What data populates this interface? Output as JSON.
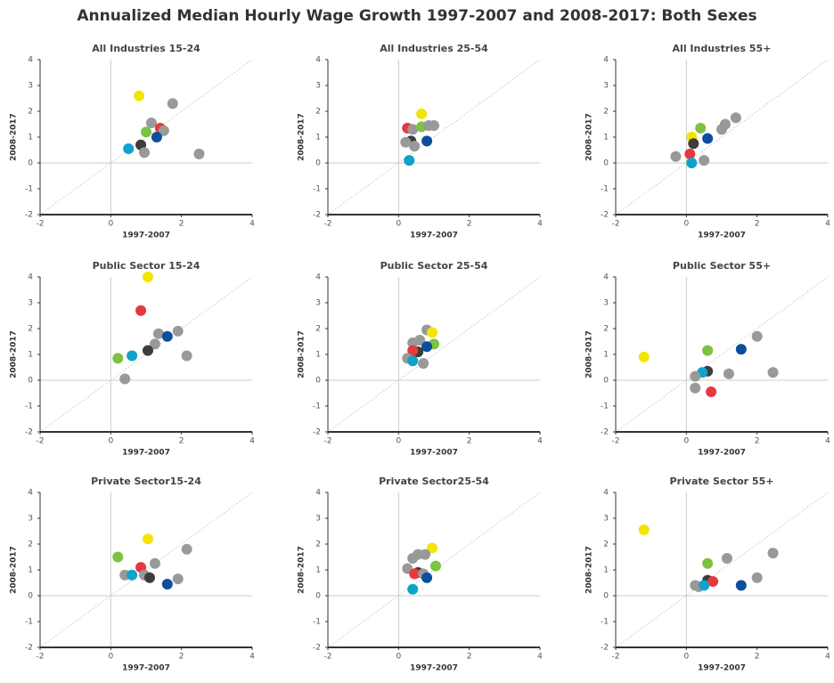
{
  "title": "Annualized Median Hourly Wage Growth 1997-2007 and 2008-2017: Both Sexes",
  "chart_data": [
    {
      "type": "scatter",
      "title": "All Industries 15-24",
      "x_label": "1997-2007",
      "y_label": "2008-2017",
      "x": [
        0.8,
        1.75,
        1.15,
        1.4,
        1.5,
        1.0,
        1.3,
        0.85,
        0.5,
        0.95,
        2.5
      ],
      "y": [
        2.6,
        2.3,
        1.55,
        1.35,
        1.25,
        1.2,
        1.0,
        0.7,
        0.55,
        0.4,
        0.35
      ],
      "colors": [
        "#f2e500",
        "#999999",
        "#999999",
        "#e8383d",
        "#999999",
        "#7dc242",
        "#0b4f9c",
        "#3d3d3d",
        "#0fa3c9",
        "#999999",
        "#999999"
      ],
      "xlim": [
        -2,
        4
      ],
      "ylim": [
        -2,
        4
      ],
      "xticks": [
        -2,
        0,
        2,
        4
      ],
      "yticks": [
        -2,
        -1,
        0,
        1,
        2,
        3,
        4
      ]
    },
    {
      "type": "scatter",
      "title": "All Industries 25-54",
      "x_label": "1997-2007",
      "y_label": "2008-2017",
      "x": [
        0.65,
        0.25,
        0.4,
        0.65,
        0.85,
        1.0,
        0.35,
        0.2,
        0.45,
        0.8,
        0.3
      ],
      "y": [
        1.9,
        1.35,
        1.3,
        1.4,
        1.45,
        1.45,
        0.85,
        0.8,
        0.65,
        0.85,
        0.1
      ],
      "colors": [
        "#f2e500",
        "#e8383d",
        "#999999",
        "#7dc242",
        "#999999",
        "#999999",
        "#3d3d3d",
        "#999999",
        "#999999",
        "#0b4f9c",
        "#0fa3c9"
      ],
      "xlim": [
        -2,
        4
      ],
      "ylim": [
        -2,
        4
      ],
      "xticks": [
        -2,
        0,
        2,
        4
      ],
      "yticks": [
        -2,
        -1,
        0,
        1,
        2,
        3,
        4
      ]
    },
    {
      "type": "scatter",
      "title": "All Industries 55+",
      "x_label": "1997-2007",
      "y_label": "2008-2017",
      "x": [
        1.4,
        1.1,
        1.0,
        0.4,
        0.6,
        0.15,
        0.2,
        0.1,
        -0.3,
        0.5,
        0.15
      ],
      "y": [
        1.75,
        1.5,
        1.3,
        1.35,
        0.95,
        1.0,
        0.75,
        0.35,
        0.25,
        0.1,
        0.0
      ],
      "colors": [
        "#999999",
        "#999999",
        "#999999",
        "#7dc242",
        "#0b4f9c",
        "#f2e500",
        "#3d3d3d",
        "#e8383d",
        "#999999",
        "#999999",
        "#0fa3c9"
      ],
      "xlim": [
        -2,
        4
      ],
      "ylim": [
        -2,
        4
      ],
      "xticks": [
        -2,
        0,
        2,
        4
      ],
      "yticks": [
        -2,
        -1,
        0,
        1,
        2,
        3,
        4
      ]
    },
    {
      "type": "scatter",
      "title": "Public Sector 15-24",
      "x_label": "1997-2007",
      "y_label": "2008-2017",
      "x": [
        1.05,
        0.85,
        1.35,
        1.9,
        1.6,
        1.25,
        1.05,
        2.15,
        0.6,
        0.2,
        0.4
      ],
      "y": [
        4.0,
        2.7,
        1.8,
        1.9,
        1.7,
        1.4,
        1.15,
        0.95,
        0.95,
        0.85,
        0.05
      ],
      "colors": [
        "#f2e500",
        "#e8383d",
        "#999999",
        "#999999",
        "#0b4f9c",
        "#999999",
        "#3d3d3d",
        "#999999",
        "#0fa3c9",
        "#7dc242",
        "#999999"
      ],
      "xlim": [
        -2,
        4
      ],
      "ylim": [
        -2,
        4
      ],
      "xticks": [
        -2,
        0,
        2,
        4
      ],
      "yticks": [
        -2,
        -1,
        0,
        1,
        2,
        3,
        4
      ]
    },
    {
      "type": "scatter",
      "title": "Public Sector 25-54",
      "x_label": "1997-2007",
      "y_label": "2008-2017",
      "x": [
        0.8,
        0.95,
        0.6,
        0.4,
        1.0,
        0.8,
        0.55,
        0.4,
        0.25,
        0.4,
        0.7
      ],
      "y": [
        1.95,
        1.85,
        1.55,
        1.45,
        1.4,
        1.3,
        1.1,
        1.15,
        0.85,
        0.75,
        0.65
      ],
      "colors": [
        "#999999",
        "#f2e500",
        "#999999",
        "#999999",
        "#7dc242",
        "#0b4f9c",
        "#3d3d3d",
        "#e8383d",
        "#999999",
        "#0fa3c9",
        "#999999"
      ],
      "xlim": [
        -2,
        4
      ],
      "ylim": [
        -2,
        4
      ],
      "xticks": [
        -2,
        0,
        2,
        4
      ],
      "yticks": [
        -2,
        -1,
        0,
        1,
        2,
        3,
        4
      ]
    },
    {
      "type": "scatter",
      "title": "Public Sector 55+",
      "x_label": "1997-2007",
      "y_label": "2008-2017",
      "x": [
        -1.2,
        0.6,
        2.0,
        1.55,
        0.6,
        0.45,
        1.2,
        2.45,
        0.25,
        0.25,
        0.7
      ],
      "y": [
        0.9,
        1.15,
        1.7,
        1.2,
        0.35,
        0.3,
        0.25,
        0.3,
        0.15,
        -0.3,
        -0.45
      ],
      "colors": [
        "#f2e500",
        "#7dc242",
        "#999999",
        "#0b4f9c",
        "#3d3d3d",
        "#0fa3c9",
        "#999999",
        "#999999",
        "#999999",
        "#999999",
        "#e8383d"
      ],
      "xlim": [
        -2,
        4
      ],
      "ylim": [
        -2,
        4
      ],
      "xticks": [
        -2,
        0,
        2,
        4
      ],
      "yticks": [
        -2,
        -1,
        0,
        1,
        2,
        3,
        4
      ]
    },
    {
      "type": "scatter",
      "title": "Private Sector15-24",
      "x_label": "1997-2007",
      "y_label": "2008-2017",
      "x": [
        1.05,
        2.15,
        0.2,
        1.25,
        0.85,
        0.4,
        0.6,
        0.95,
        1.1,
        1.9,
        1.6
      ],
      "y": [
        2.2,
        1.8,
        1.5,
        1.25,
        1.1,
        0.8,
        0.8,
        0.8,
        0.7,
        0.65,
        0.45
      ],
      "colors": [
        "#f2e500",
        "#999999",
        "#7dc242",
        "#999999",
        "#e8383d",
        "#999999",
        "#0fa3c9",
        "#999999",
        "#3d3d3d",
        "#999999",
        "#0b4f9c"
      ],
      "xlim": [
        -2,
        4
      ],
      "ylim": [
        -2,
        4
      ],
      "xticks": [
        -2,
        0,
        2,
        4
      ],
      "yticks": [
        -2,
        -1,
        0,
        1,
        2,
        3,
        4
      ]
    },
    {
      "type": "scatter",
      "title": "Private Sector25-54",
      "x_label": "1997-2007",
      "y_label": "2008-2017",
      "x": [
        0.95,
        0.55,
        0.75,
        0.4,
        1.05,
        0.25,
        0.55,
        0.45,
        0.7,
        0.8,
        0.4
      ],
      "y": [
        1.85,
        1.6,
        1.6,
        1.45,
        1.15,
        1.05,
        0.9,
        0.85,
        0.85,
        0.7,
        0.25
      ],
      "colors": [
        "#f2e500",
        "#999999",
        "#999999",
        "#999999",
        "#7dc242",
        "#999999",
        "#3d3d3d",
        "#e8383d",
        "#999999",
        "#0b4f9c",
        "#0fa3c9"
      ],
      "xlim": [
        -2,
        4
      ],
      "ylim": [
        -2,
        4
      ],
      "xticks": [
        -2,
        0,
        2,
        4
      ],
      "yticks": [
        -2,
        -1,
        0,
        1,
        2,
        3,
        4
      ]
    },
    {
      "type": "scatter",
      "title": "Private Sector 55+",
      "x_label": "1997-2007",
      "y_label": "2008-2017",
      "x": [
        -1.2,
        2.45,
        1.15,
        0.6,
        2.0,
        0.6,
        0.75,
        0.25,
        0.35,
        0.5,
        1.55
      ],
      "y": [
        2.55,
        1.65,
        1.45,
        1.25,
        0.7,
        0.6,
        0.55,
        0.4,
        0.35,
        0.4,
        0.4
      ],
      "colors": [
        "#f2e500",
        "#999999",
        "#999999",
        "#7dc242",
        "#999999",
        "#3d3d3d",
        "#e8383d",
        "#999999",
        "#999999",
        "#0fa3c9",
        "#0b4f9c"
      ],
      "xlim": [
        -2,
        4
      ],
      "ylim": [
        -2,
        4
      ],
      "xticks": [
        -2,
        0,
        2,
        4
      ],
      "yticks": [
        -2,
        -1,
        0,
        1,
        2,
        3,
        4
      ]
    }
  ]
}
